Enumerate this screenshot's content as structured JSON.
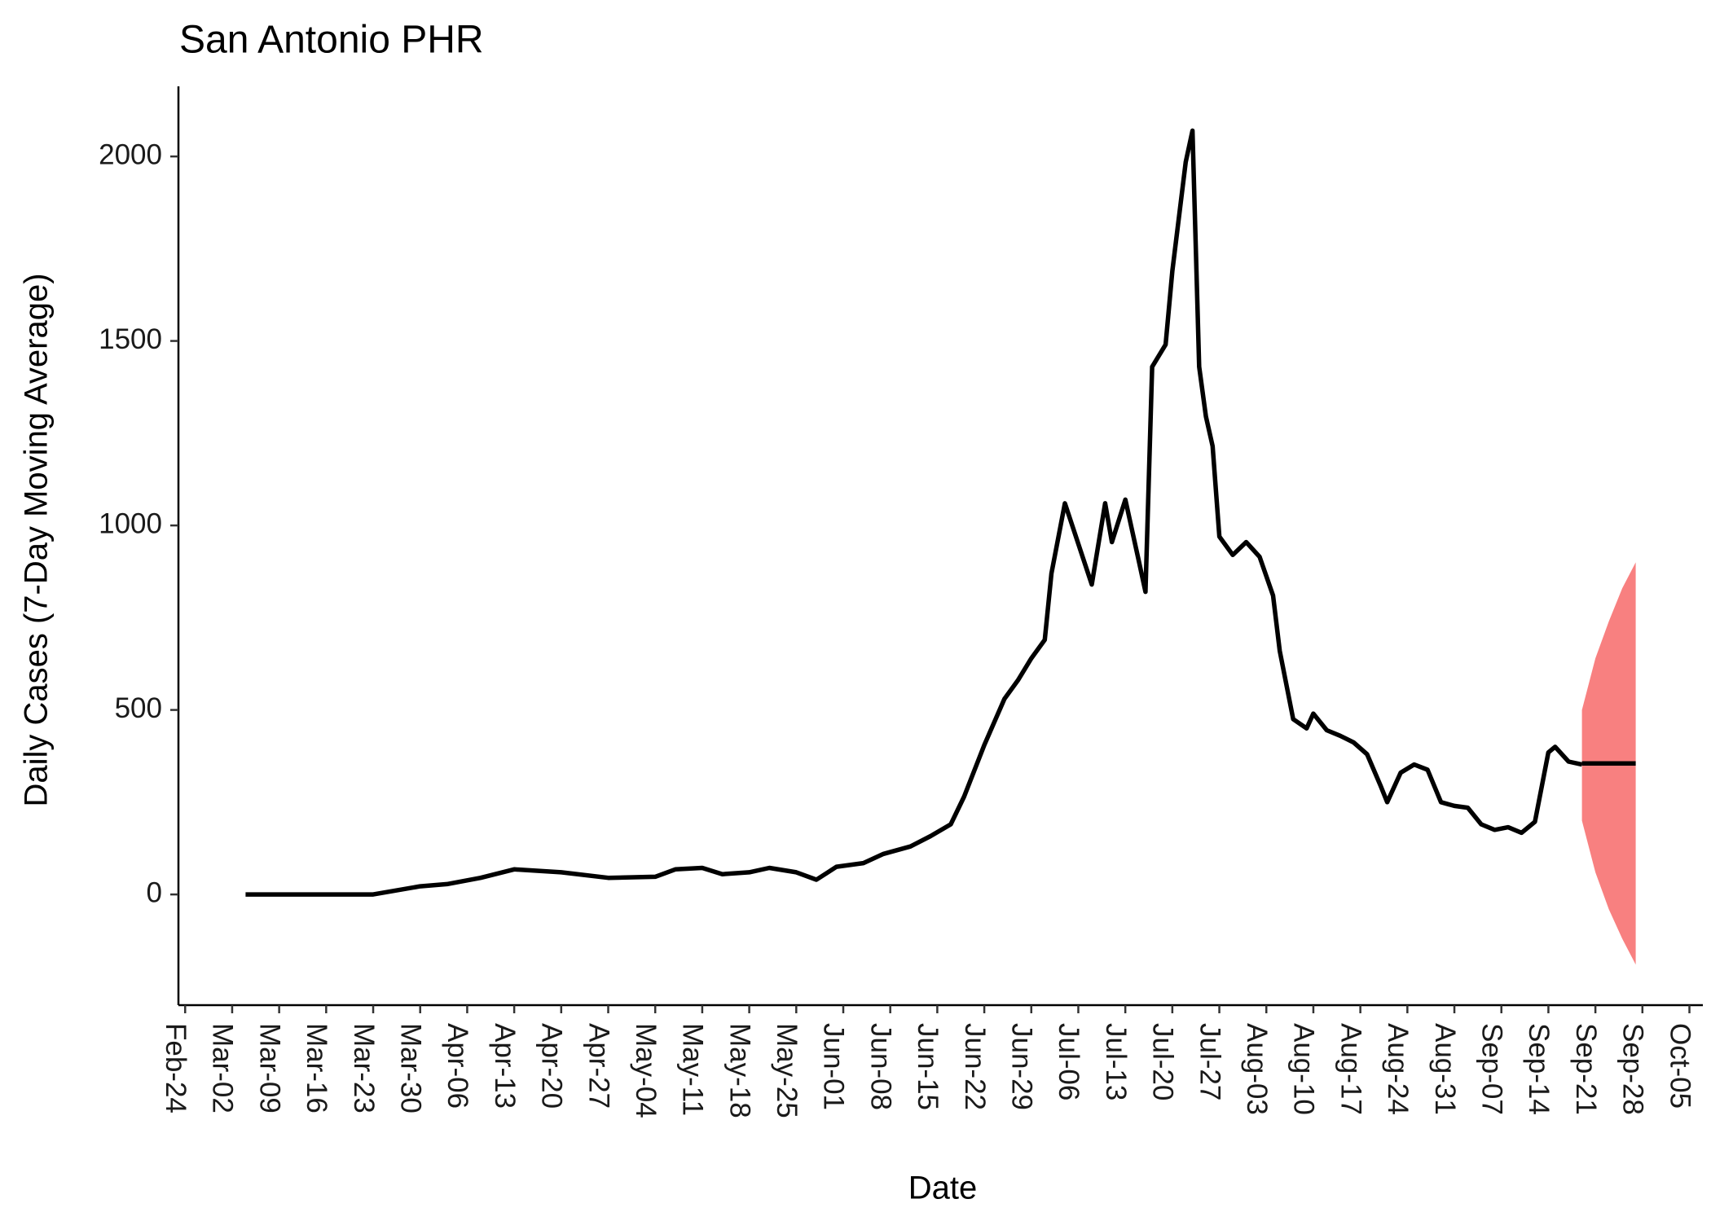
{
  "chart_data": {
    "type": "line",
    "title": "San Antonio PHR",
    "x_label": "Date",
    "y_label": "Daily Cases (7-Day Moving Average)",
    "xlim": [
      "Feb-23",
      "Oct-07"
    ],
    "xticks": [
      "Feb-24",
      "Mar-02",
      "Mar-09",
      "Mar-16",
      "Mar-23",
      "Mar-30",
      "Apr-06",
      "Apr-13",
      "Apr-20",
      "Apr-27",
      "May-04",
      "May-11",
      "May-18",
      "May-25",
      "Jun-01",
      "Jun-08",
      "Jun-15",
      "Jun-22",
      "Jun-29",
      "Jul-06",
      "Jul-13",
      "Jul-20",
      "Jul-27",
      "Aug-03",
      "Aug-10",
      "Aug-17",
      "Aug-24",
      "Aug-31",
      "Sep-07",
      "Sep-14",
      "Sep-21",
      "Sep-28",
      "Oct-05"
    ],
    "ylim": [
      -300,
      2190
    ],
    "yticks": [
      0,
      500,
      1000,
      1500,
      2000
    ],
    "grid": false,
    "series": [
      {
        "color": "#000000",
        "x": [
          "Mar-04",
          "Mar-14",
          "Mar-23",
          "Mar-30",
          "Apr-03",
          "Apr-08",
          "Apr-13",
          "Apr-20",
          "Apr-27",
          "May-04",
          "May-07",
          "May-11",
          "May-14",
          "May-18",
          "May-21",
          "May-25",
          "May-28",
          "May-31",
          "Jun-04",
          "Jun-07",
          "Jun-11",
          "Jun-14",
          "Jun-17",
          "Jun-19",
          "Jun-22",
          "Jun-25",
          "Jun-27",
          "Jun-29",
          "Jul-01",
          "Jul-02",
          "Jul-04",
          "Jul-06",
          "Jul-08",
          "Jul-10",
          "Jul-11",
          "Jul-13",
          "Jul-15",
          "Jul-16",
          "Jul-17",
          "Jul-19",
          "Jul-20",
          "Jul-22",
          "Jul-23",
          "Jul-24",
          "Jul-25",
          "Jul-26",
          "Jul-27",
          "Jul-29",
          "Jul-31",
          "Aug-02",
          "Aug-04",
          "Aug-05",
          "Aug-07",
          "Aug-09",
          "Aug-10",
          "Aug-12",
          "Aug-14",
          "Aug-16",
          "Aug-18",
          "Aug-20",
          "Aug-21",
          "Aug-23",
          "Aug-25",
          "Aug-27",
          "Aug-29",
          "Aug-31",
          "Sep-02",
          "Sep-04",
          "Sep-06",
          "Sep-08",
          "Sep-10",
          "Sep-12",
          "Sep-14",
          "Sep-15",
          "Sep-17",
          "Sep-19"
        ],
        "values": [
          0,
          0,
          0,
          22,
          28,
          45,
          68,
          60,
          45,
          48,
          68,
          72,
          55,
          60,
          72,
          60,
          40,
          75,
          85,
          110,
          130,
          158,
          190,
          265,
          405,
          530,
          580,
          640,
          690,
          870,
          1060,
          950,
          840,
          1060,
          955,
          1070,
          905,
          820,
          1430,
          1490,
          1690,
          1985,
          2070,
          1430,
          1295,
          1215,
          970,
          920,
          955,
          915,
          810,
          660,
          475,
          450,
          490,
          445,
          430,
          412,
          380,
          295,
          250,
          330,
          352,
          338,
          250,
          240,
          235,
          190,
          175,
          182,
          167,
          197,
          385,
          400,
          360,
          352
        ]
      },
      {
        "type": "forecast",
        "color": "#000000",
        "band_color": "#f88080",
        "x": [
          "Sep-19",
          "Sep-21",
          "Sep-23",
          "Sep-25",
          "Sep-27"
        ],
        "values": [
          355,
          355,
          355,
          355,
          355
        ],
        "lower": [
          200,
          60,
          -40,
          -120,
          -190
        ],
        "upper": [
          500,
          640,
          740,
          830,
          900
        ]
      }
    ]
  }
}
